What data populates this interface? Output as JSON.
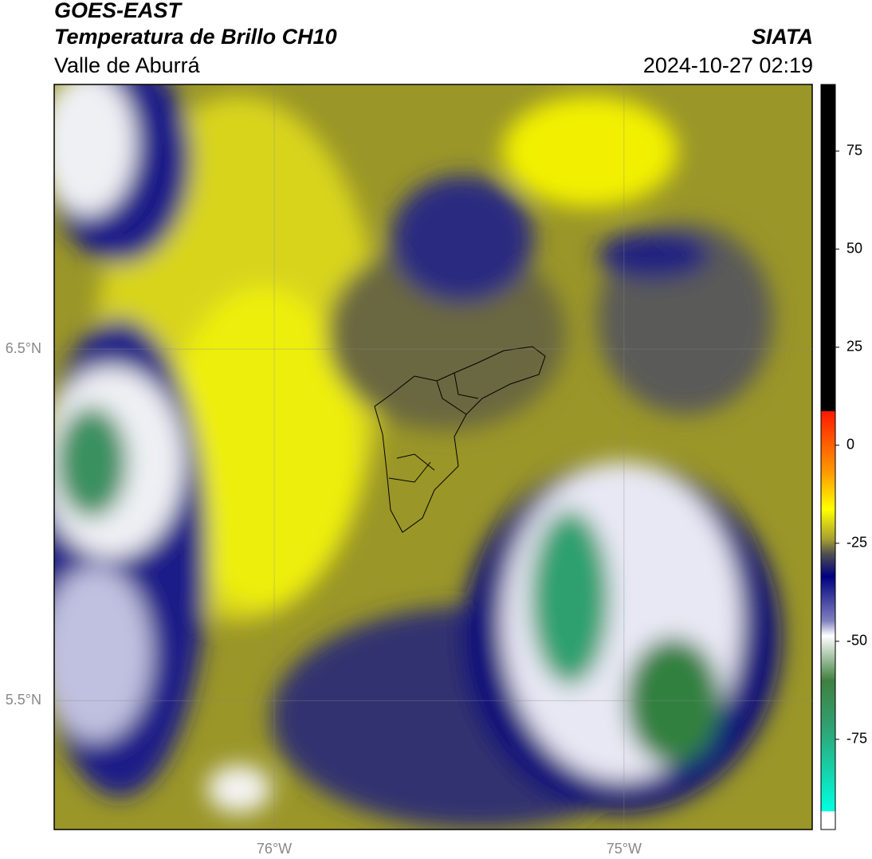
{
  "header": {
    "title": "GOES-EAST",
    "subtitle": "Temperatura de Brillo CH10",
    "region": "Valle de Aburrá",
    "agency": "SIATA",
    "datetime": "2024-10-27 02:19"
  },
  "map": {
    "lat_lim": [
      5.133,
      7.253
    ],
    "lon_lim": [
      -76.629,
      -74.462
    ],
    "lat_ticks": [
      {
        "value": 6.5,
        "label": "6.5°N"
      },
      {
        "value": 5.5,
        "label": "5.5°N"
      }
    ],
    "lon_ticks": [
      {
        "value": -76,
        "label": "76°W"
      },
      {
        "value": -75,
        "label": "75°W"
      }
    ]
  },
  "colorbar": {
    "clim": [
      -98,
      92
    ],
    "ticks": [
      75,
      50,
      25,
      0,
      -25,
      -50,
      -75
    ]
  }
}
